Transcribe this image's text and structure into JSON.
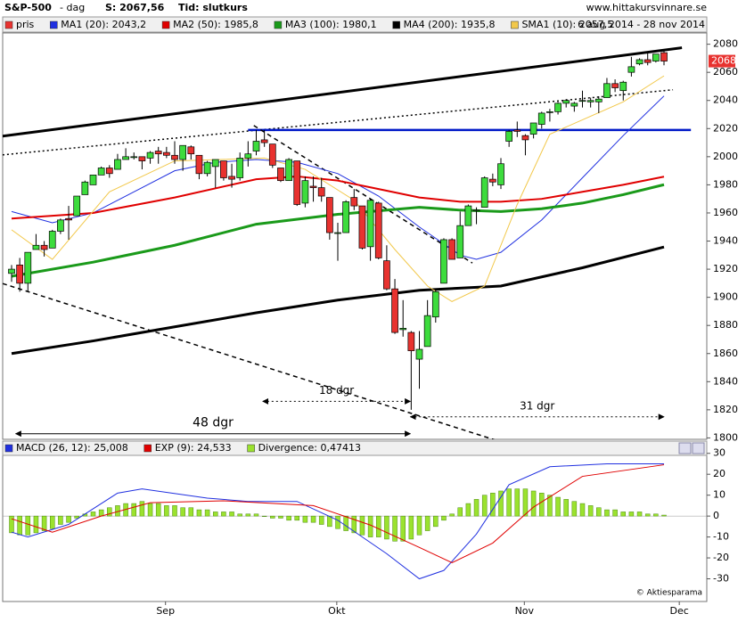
{
  "header": {
    "title": "S&P-500",
    "period": "- dag",
    "last": "S: 2067,56",
    "time": "Tid: slutkurs",
    "site": "www.hittakursvinnare.se",
    "range": "6 aug 2014 - 28 nov 2014",
    "copyright": "© Aktiesparama"
  },
  "chart_data": [
    {
      "type": "candlestick",
      "ylim": [
        1799,
        2088
      ],
      "yticks": [
        1800,
        1820,
        1840,
        1860,
        1880,
        1900,
        1920,
        1940,
        1960,
        1980,
        2000,
        2020,
        2040,
        2060,
        2080
      ],
      "xticks": [
        {
          "value": 18,
          "label": "Sep"
        },
        {
          "value": 39,
          "label": "Okt"
        },
        {
          "value": 62,
          "label": "Nov"
        },
        {
          "value": 81,
          "label": "Dec"
        }
      ],
      "last_label": "2068",
      "last_value": 2068,
      "price": {
        "name": "pris",
        "color": "#e8322f",
        "up_color": "#3ddc3d",
        "down_color": "#e8322f",
        "ohlc": [
          [
            1917,
            1923,
            1911,
            1920
          ],
          [
            1923,
            1928,
            1904,
            1910
          ],
          [
            1910,
            1932,
            1904,
            1932
          ],
          [
            1934,
            1945,
            1934,
            1937
          ],
          [
            1937,
            1940,
            1929,
            1934
          ],
          [
            1935,
            1948,
            1935,
            1947
          ],
          [
            1947,
            1956,
            1945,
            1955
          ],
          [
            1956,
            1965,
            1941,
            1955
          ],
          [
            1958,
            1972,
            1958,
            1972
          ],
          [
            1973,
            1983,
            1973,
            1982
          ],
          [
            1980,
            1987,
            1980,
            1987
          ],
          [
            1987,
            1993,
            1987,
            1992
          ],
          [
            1992,
            1994,
            1985,
            1988
          ],
          [
            1991,
            2002,
            1991,
            1998
          ],
          [
            1998,
            2006,
            1998,
            2000
          ],
          [
            2000,
            2003,
            1998,
            2000
          ],
          [
            2000,
            2000,
            1991,
            1997
          ],
          [
            1999,
            2004,
            1995,
            2003
          ],
          [
            2004,
            2007,
            1995,
            2002
          ],
          [
            2003,
            2007,
            1999,
            2001
          ],
          [
            2001,
            2011,
            1995,
            1998
          ],
          [
            1998,
            2008,
            1990,
            2008
          ],
          [
            2007,
            2008,
            1998,
            2002
          ],
          [
            2001,
            2001,
            1984,
            1988
          ],
          [
            1988,
            1997,
            1986,
            1996
          ],
          [
            1993,
            1998,
            1978,
            1998
          ],
          [
            1997,
            1997,
            1983,
            1985
          ],
          [
            1986,
            1995,
            1978,
            1984
          ],
          [
            1985,
            2003,
            1983,
            1999
          ],
          [
            1999,
            2011,
            1993,
            2002
          ],
          [
            2004,
            2019,
            2001,
            2011
          ],
          [
            2012,
            2019,
            2007,
            2010
          ],
          [
            2009,
            2009,
            1992,
            1994
          ],
          [
            1992,
            1992,
            1982,
            1983
          ],
          [
            1983,
            1999,
            1983,
            1998
          ],
          [
            1997,
            1997,
            1965,
            1966
          ],
          [
            1967,
            1986,
            1964,
            1983
          ],
          [
            1979,
            1986,
            1968,
            1978
          ],
          [
            1978,
            1985,
            1968,
            1972
          ],
          [
            1971,
            1971,
            1941,
            1946
          ],
          [
            1946,
            1953,
            1926,
            1946
          ],
          [
            1946,
            1969,
            1946,
            1968
          ],
          [
            1971,
            1977,
            1962,
            1965
          ],
          [
            1965,
            1965,
            1934,
            1935
          ],
          [
            1936,
            1970,
            1926,
            1969
          ],
          [
            1967,
            1968,
            1927,
            1928
          ],
          [
            1926,
            1937,
            1905,
            1906
          ],
          [
            1906,
            1913,
            1874,
            1875
          ],
          [
            1877,
            1898,
            1872,
            1878
          ],
          [
            1875,
            1876,
            1820,
            1862
          ],
          [
            1856,
            1876,
            1835,
            1863
          ],
          [
            1865,
            1898,
            1865,
            1887
          ],
          [
            1886,
            1905,
            1882,
            1904
          ],
          [
            1910,
            1942,
            1910,
            1941
          ],
          [
            1941,
            1942,
            1927,
            1927
          ],
          [
            1928,
            1961,
            1928,
            1951
          ],
          [
            1951,
            1966,
            1951,
            1965
          ],
          [
            1962,
            1964,
            1952,
            1962
          ],
          [
            1964,
            1986,
            1964,
            1985
          ],
          [
            1984,
            1988,
            1979,
            1982
          ],
          [
            1980,
            1999,
            1977,
            1995
          ],
          [
            2011,
            2019,
            2007,
            2018
          ],
          [
            2019,
            2025,
            2014,
            2018
          ],
          [
            2015,
            2016,
            2001,
            2012
          ],
          [
            2016,
            2024,
            2013,
            2024
          ],
          [
            2023,
            2032,
            2020,
            2031
          ],
          [
            2032,
            2034,
            2025,
            2032
          ],
          [
            2032,
            2039,
            2030,
            2038
          ],
          [
            2038,
            2041,
            2035,
            2040
          ],
          [
            2036,
            2039,
            2032,
            2038
          ],
          [
            2040,
            2047,
            2035,
            2040
          ],
          [
            2039,
            2042,
            2035,
            2040
          ],
          [
            2039,
            2043,
            2031,
            2041
          ],
          [
            2042,
            2056,
            2042,
            2052
          ],
          [
            2052,
            2055,
            2046,
            2049
          ],
          [
            2047,
            2054,
            2040,
            2053
          ],
          [
            2060,
            2071,
            2057,
            2064
          ],
          [
            2066,
            2070,
            2065,
            2069
          ],
          [
            2069,
            2074,
            2065,
            2067
          ],
          [
            2068,
            2073,
            2067,
            2073
          ],
          [
            2074,
            2075,
            2065,
            2068
          ]
        ]
      },
      "series": [
        {
          "name": "MA1 (20): 2043,2",
          "color": "#2030e0",
          "width": 1,
          "x": [
            0,
            5,
            10,
            15,
            20,
            25,
            30,
            35,
            40,
            45,
            50,
            55,
            57,
            60,
            65,
            70,
            75,
            80
          ],
          "values": [
            1961,
            1953,
            1960,
            1975,
            1990,
            1996,
            1998,
            1996,
            1988,
            1972,
            1950,
            1930,
            1927,
            1932,
            1955,
            1985,
            2015,
            2043.2
          ]
        },
        {
          "name": "MA2 (50): 1985,8",
          "color": "#e00000",
          "width": 2,
          "x": [
            0,
            10,
            20,
            30,
            35,
            40,
            45,
            50,
            55,
            60,
            65,
            70,
            75,
            80
          ],
          "values": [
            1956,
            1960,
            1971,
            1984,
            1986,
            1983,
            1977,
            1971,
            1968,
            1968,
            1970,
            1975,
            1980,
            1985.8
          ]
        },
        {
          "name": "MA3 (100): 1980,1",
          "color": "#1a9a1a",
          "width": 3,
          "x": [
            0,
            10,
            20,
            30,
            40,
            50,
            55,
            60,
            65,
            70,
            75,
            80
          ],
          "values": [
            1915,
            1925,
            1937,
            1952,
            1959,
            1964,
            1962,
            1961,
            1963,
            1967,
            1973,
            1980.1
          ]
        },
        {
          "name": "MA4 (200): 1935,8",
          "color": "#000000",
          "width": 3,
          "x": [
            0,
            10,
            20,
            30,
            40,
            50,
            60,
            70,
            80
          ],
          "values": [
            1860,
            1869,
            1879,
            1889,
            1898,
            1905,
            1908,
            1921,
            1935.8
          ]
        },
        {
          "name": "SMA1 (10): 2057,5",
          "color": "#f2c84b",
          "width": 1,
          "x": [
            0,
            5,
            12,
            20,
            31,
            36,
            42,
            47,
            51,
            54,
            58,
            62,
            66,
            75,
            80
          ],
          "values": [
            1948,
            1927,
            1975,
            1997,
            1999,
            1991,
            1969,
            1934,
            1908,
            1897,
            1908,
            1966,
            2016,
            2039,
            2057.5
          ]
        }
      ],
      "trendlines": [
        {
          "color": "#000000",
          "style": "solid",
          "width": 3,
          "x": [
            -1.1,
            82.2
          ],
          "y": [
            2014.6,
            2077.5
          ]
        },
        {
          "color": "#000000",
          "style": "dotted",
          "width": 1.5,
          "x": [
            -1.1,
            81.1
          ],
          "y": [
            2001.3,
            2047.6
          ]
        },
        {
          "color": "#0018c8",
          "style": "solid",
          "width": 2.5,
          "x": [
            29,
            83.3
          ],
          "y": [
            2019,
            2019
          ]
        },
        {
          "color": "#000000",
          "style": "dashed",
          "width": 1.5,
          "x": [
            29.7,
            56.5
          ],
          "y": [
            2022.2,
            1924.4
          ]
        },
        {
          "color": "#000000",
          "style": "dashed",
          "width": 1.5,
          "x": [
            -1.1,
            59.2
          ],
          "y": [
            1909.8,
            1798.7
          ]
        }
      ],
      "annotations": [
        {
          "text": "48 dgr",
          "style": "solid",
          "x": [
            0.5,
            48.9
          ],
          "y": 1803
        },
        {
          "text": "18 dgr",
          "style": "dotted",
          "x": [
            30.8,
            48.9
          ],
          "y": 1826
        },
        {
          "text": "31 dgr",
          "style": "dotted",
          "x": [
            48.9,
            80
          ],
          "y": 1815
        }
      ]
    },
    {
      "type": "line",
      "ylim": [
        -40,
        35
      ],
      "yticks": [
        -30,
        -20,
        -10,
        0,
        10,
        20,
        30
      ],
      "series": [
        {
          "name": "MACD (26, 12): 25,008",
          "color": "#2030e0",
          "type": "line",
          "x": [
            0,
            2,
            7,
            13,
            16,
            24,
            29,
            35,
            40,
            46,
            50,
            53,
            57,
            61,
            66,
            73,
            80
          ],
          "values": [
            -7.7,
            -10,
            -4,
            11,
            13,
            8.6,
            7,
            7,
            -2,
            -18,
            -30,
            -26,
            -8.6,
            15,
            23.6,
            25,
            25.008
          ]
        },
        {
          "name": "EXP (9): 24,533",
          "color": "#e00000",
          "type": "line",
          "x": [
            0,
            5,
            11,
            17,
            26,
            37,
            44,
            50,
            54,
            59,
            64,
            70,
            80
          ],
          "values": [
            -1.3,
            -7.7,
            0,
            6.4,
            7.3,
            5,
            -4.3,
            -15,
            -22.3,
            -12.9,
            4.3,
            19,
            24.533
          ]
        },
        {
          "name": "Divergence: 0,47413",
          "color": "#9be22e",
          "type": "bar",
          "values": [
            -8,
            -9,
            -9,
            -8,
            -7,
            -6,
            -4,
            -3,
            -1,
            1,
            2,
            3,
            4,
            5,
            6,
            6,
            7,
            6,
            6,
            5,
            5,
            4,
            4,
            3,
            3,
            2,
            2,
            2,
            1,
            1,
            1,
            0,
            -1,
            -1,
            -2,
            -2,
            -3,
            -3,
            -4,
            -5,
            -6,
            -7,
            -8,
            -9,
            -10,
            -10,
            -11,
            -12,
            -12,
            -11,
            -9,
            -7,
            -5,
            -2,
            1,
            4,
            6,
            8,
            10,
            11,
            12,
            13,
            13,
            13,
            12,
            11,
            10,
            9,
            8,
            7,
            6,
            5,
            4,
            3,
            3,
            2,
            2,
            2,
            1,
            1,
            0.47413
          ]
        }
      ]
    }
  ]
}
